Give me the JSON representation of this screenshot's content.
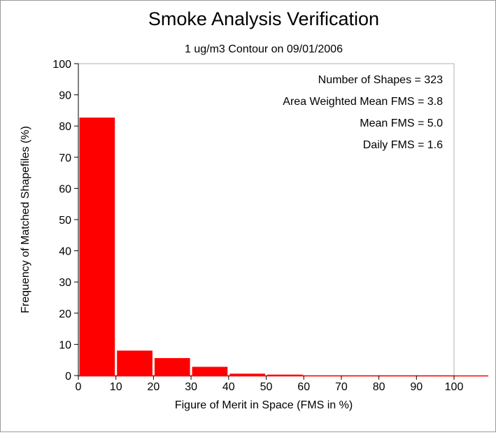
{
  "chart_data": {
    "type": "bar",
    "title": "Smoke Analysis Verification",
    "subtitle": "1 ug/m3 Contour on 09/01/2006",
    "xlabel": "Figure of Merit in Space (FMS in %)",
    "ylabel": "Frequency of Matched Shapefiles (%)",
    "xlim": [
      0,
      100
    ],
    "ylim": [
      0,
      100
    ],
    "x_ticks": [
      0,
      10,
      20,
      30,
      40,
      50,
      60,
      70,
      80,
      90,
      100
    ],
    "y_ticks": [
      0,
      10,
      20,
      30,
      40,
      50,
      60,
      70,
      80,
      90,
      100
    ],
    "bins": [
      {
        "start": 0,
        "end": 10,
        "value": 82.7
      },
      {
        "start": 10,
        "end": 20,
        "value": 8.0
      },
      {
        "start": 20,
        "end": 30,
        "value": 5.6
      },
      {
        "start": 30,
        "end": 40,
        "value": 2.8
      },
      {
        "start": 40,
        "end": 50,
        "value": 0.6
      },
      {
        "start": 50,
        "end": 60,
        "value": 0.3
      },
      {
        "start": 60,
        "end": 70,
        "value": 0.0
      },
      {
        "start": 70,
        "end": 80,
        "value": 0.0
      },
      {
        "start": 80,
        "end": 90,
        "value": 0.0
      },
      {
        "start": 90,
        "end": 100,
        "value": 0.0
      }
    ],
    "annotations": [
      "Number of Shapes = 323",
      "Area Weighted Mean FMS = 3.8",
      "Mean FMS = 5.0",
      "Daily FMS = 1.6"
    ],
    "bar_color": "#ff0000",
    "grid": false
  }
}
